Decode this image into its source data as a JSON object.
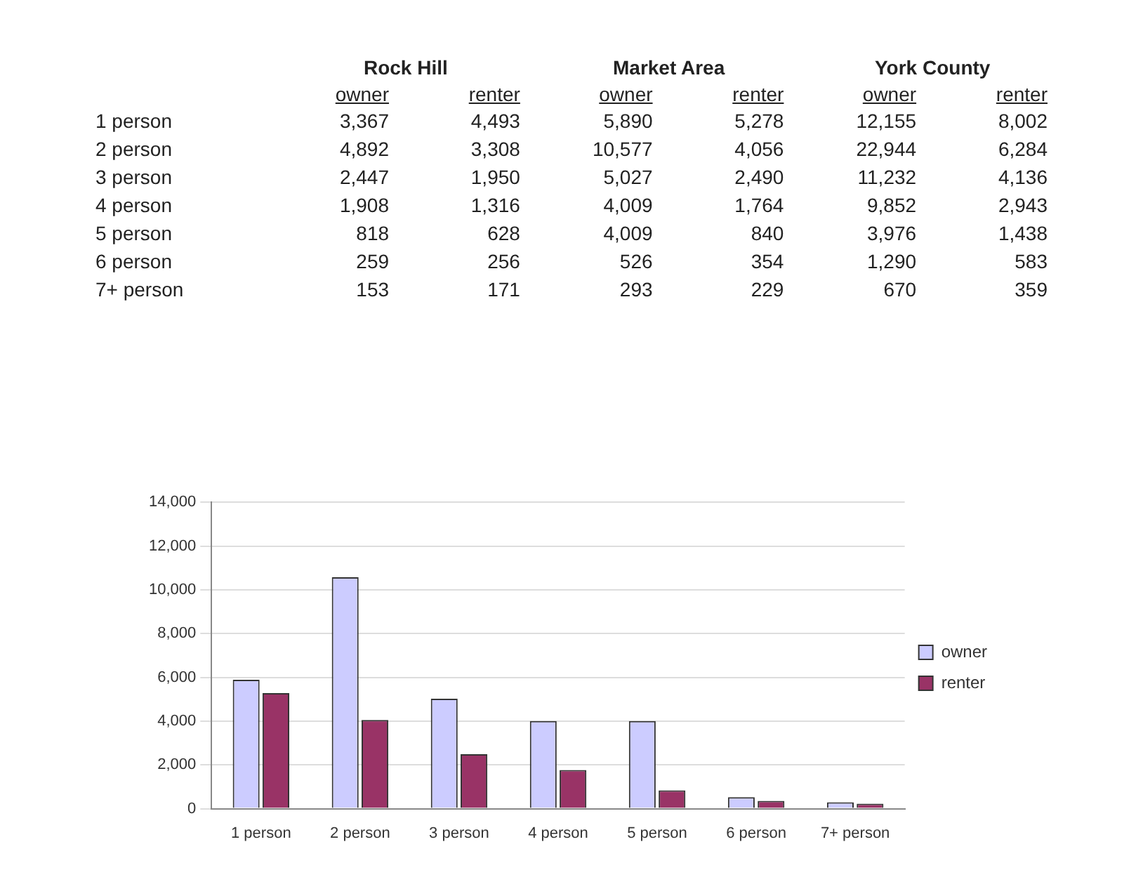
{
  "chart_data": [
    {
      "type": "heatmap",
      "annotations": [
        "Rock Hill",
        "Market Area",
        "York County"
      ],
      "categories": [
        "owner",
        "renter",
        "owner",
        "renter",
        "owner",
        "renter"
      ],
      "y_categories": [
        "1 person",
        "2 person",
        "3 person",
        "4 person",
        "5 person",
        "6 person",
        "7+ person"
      ],
      "cells": [
        [
          3367,
          4493,
          5890,
          5278,
          12155,
          8002
        ],
        [
          4892,
          3308,
          10577,
          4056,
          22944,
          6284
        ],
        [
          2447,
          1950,
          5027,
          2490,
          11232,
          4136
        ],
        [
          1908,
          1316,
          4009,
          1764,
          9852,
          2943
        ],
        [
          818,
          628,
          4009,
          840,
          3976,
          1438
        ],
        [
          259,
          256,
          526,
          354,
          1290,
          583
        ],
        [
          153,
          171,
          293,
          229,
          670,
          359
        ]
      ],
      "cell_labels": [
        [
          "3,367",
          "4,493",
          "5,890",
          "5,278",
          "12,155",
          "8,002"
        ],
        [
          "4,892",
          "3,308",
          "10,577",
          "4,056",
          "22,944",
          "6,284"
        ],
        [
          "2,447",
          "1,950",
          "5,027",
          "2,490",
          "11,232",
          "4,136"
        ],
        [
          "1,908",
          "1,316",
          "4,009",
          "1,764",
          "9,852",
          "2,943"
        ],
        [
          "818",
          "628",
          "4,009",
          "840",
          "3,976",
          "1,438"
        ],
        [
          "259",
          "256",
          "526",
          "354",
          "1,290",
          "583"
        ],
        [
          "153",
          "171",
          "293",
          "229",
          "670",
          "359"
        ]
      ]
    },
    {
      "type": "bar",
      "categories": [
        "1 person",
        "2 person",
        "3 person",
        "4 person",
        "5 person",
        "6 person",
        "7+ person"
      ],
      "series": [
        {
          "name": "owner",
          "color": "#ccccff",
          "values": [
            5890,
            10577,
            5027,
            4009,
            4009,
            526,
            293
          ]
        },
        {
          "name": "renter",
          "color": "#993366",
          "values": [
            5278,
            4056,
            2490,
            1764,
            840,
            354,
            229
          ]
        }
      ],
      "ylim": [
        0,
        14000
      ],
      "yticks": [
        0,
        {
          "value": 2000,
          "label": "2,000"
        },
        {
          "value": 4000,
          "label": "4,000"
        },
        {
          "value": 6000,
          "label": "6,000"
        },
        {
          "value": 8000,
          "label": "8,000"
        },
        {
          "value": 10000,
          "label": "10,000"
        },
        {
          "value": 12000,
          "label": "12,000"
        },
        {
          "value": 14000,
          "label": "14,000"
        }
      ],
      "grid": "y",
      "legend": "right"
    }
  ]
}
